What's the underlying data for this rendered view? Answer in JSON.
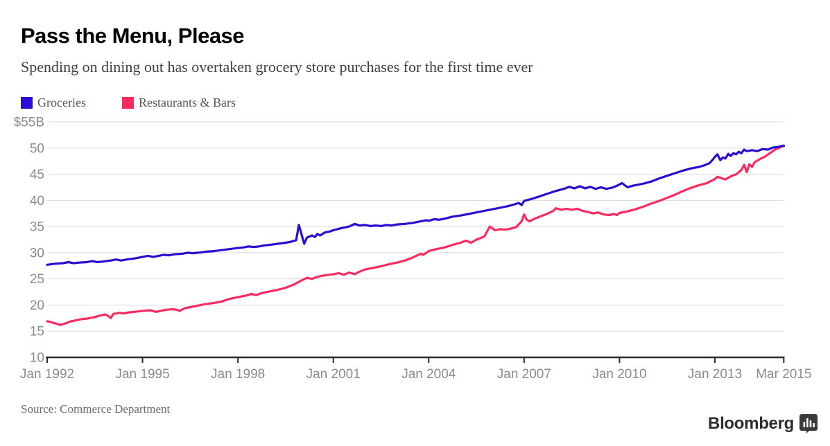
{
  "header": {
    "title": "Pass the Menu, Please",
    "subtitle": "Spending on dining out has overtaken grocery store purchases for the first time ever"
  },
  "legend": {
    "items": [
      {
        "label": "Groceries",
        "color": "#2c0bd2"
      },
      {
        "label": "Restaurants & Bars",
        "color": "#fb2b5f"
      }
    ]
  },
  "footer": {
    "source": "Source: Commerce Department",
    "brand": "Bloomberg",
    "brand_icon": "bloomberg-chart-badge-icon"
  },
  "chart_data": {
    "type": "line",
    "title": "Pass the Menu, Please",
    "subtitle": "Spending on dining out has overtaken grocery store purchases for the first time ever",
    "unit": "billions of US dollars, monthly",
    "grid": "horizontal",
    "legend_position": "top-left",
    "x_axis": {
      "min": 1992.0,
      "max": 2015.4,
      "ticks": [
        {
          "label": "Jan 1992",
          "x": 1992.0
        },
        {
          "label": "Jan 1995",
          "x": 1995.0
        },
        {
          "label": "Jan 1998",
          "x": 1998.0
        },
        {
          "label": "Jan 2001",
          "x": 2001.0
        },
        {
          "label": "Jan 2004",
          "x": 2004.0
        },
        {
          "label": "Jan 2007",
          "x": 2007.0
        },
        {
          "label": "Jan 2010",
          "x": 2010.0
        },
        {
          "label": "Jan 2013",
          "x": 2013.0
        },
        {
          "label": "Mar 2015",
          "x": 2015.167
        }
      ]
    },
    "y_axis": {
      "min": 10,
      "max": 55,
      "step": 5,
      "ticks": [
        {
          "label": "$55B",
          "value": 55
        },
        {
          "label": "50",
          "value": 50
        },
        {
          "label": "45",
          "value": 45
        },
        {
          "label": "40",
          "value": 40
        },
        {
          "label": "35",
          "value": 35
        },
        {
          "label": "30",
          "value": 30
        },
        {
          "label": "25",
          "value": 25
        },
        {
          "label": "20",
          "value": 20
        },
        {
          "label": "15",
          "value": 15
        },
        {
          "label": "10",
          "value": 10
        }
      ]
    },
    "series": [
      {
        "name": "Groceries",
        "color": "#2c0bd2",
        "points": [
          [
            1992.0,
            27.7
          ],
          [
            1992.25,
            27.9
          ],
          [
            1992.5,
            28.0
          ],
          [
            1992.67,
            28.2
          ],
          [
            1992.83,
            28.0
          ],
          [
            1993.0,
            28.1
          ],
          [
            1993.25,
            28.2
          ],
          [
            1993.42,
            28.4
          ],
          [
            1993.58,
            28.2
          ],
          [
            1993.75,
            28.3
          ],
          [
            1994.0,
            28.5
          ],
          [
            1994.17,
            28.7
          ],
          [
            1994.33,
            28.5
          ],
          [
            1994.5,
            28.7
          ],
          [
            1994.75,
            28.9
          ],
          [
            1994.92,
            29.1
          ],
          [
            1995.0,
            29.2
          ],
          [
            1995.17,
            29.4
          ],
          [
            1995.33,
            29.2
          ],
          [
            1995.5,
            29.4
          ],
          [
            1995.67,
            29.6
          ],
          [
            1995.83,
            29.5
          ],
          [
            1996.0,
            29.7
          ],
          [
            1996.25,
            29.8
          ],
          [
            1996.42,
            30.0
          ],
          [
            1996.58,
            29.9
          ],
          [
            1996.75,
            30.0
          ],
          [
            1997.0,
            30.2
          ],
          [
            1997.25,
            30.3
          ],
          [
            1997.5,
            30.5
          ],
          [
            1997.75,
            30.7
          ],
          [
            1998.0,
            30.9
          ],
          [
            1998.17,
            31.0
          ],
          [
            1998.33,
            31.2
          ],
          [
            1998.5,
            31.1
          ],
          [
            1998.67,
            31.2
          ],
          [
            1998.83,
            31.4
          ],
          [
            1999.0,
            31.5
          ],
          [
            1999.25,
            31.7
          ],
          [
            1999.5,
            31.9
          ],
          [
            1999.67,
            32.1
          ],
          [
            1999.83,
            32.4
          ],
          [
            1999.917,
            35.3
          ],
          [
            2000.083,
            31.7
          ],
          [
            2000.17,
            32.9
          ],
          [
            2000.33,
            33.3
          ],
          [
            2000.42,
            33.0
          ],
          [
            2000.5,
            33.6
          ],
          [
            2000.58,
            33.3
          ],
          [
            2000.75,
            33.9
          ],
          [
            2000.92,
            34.1
          ],
          [
            2001.0,
            34.3
          ],
          [
            2001.25,
            34.7
          ],
          [
            2001.5,
            35.0
          ],
          [
            2001.67,
            35.5
          ],
          [
            2001.83,
            35.2
          ],
          [
            2002.0,
            35.3
          ],
          [
            2002.17,
            35.1
          ],
          [
            2002.33,
            35.2
          ],
          [
            2002.5,
            35.1
          ],
          [
            2002.67,
            35.3
          ],
          [
            2002.83,
            35.2
          ],
          [
            2003.0,
            35.4
          ],
          [
            2003.25,
            35.5
          ],
          [
            2003.5,
            35.7
          ],
          [
            2003.75,
            36.0
          ],
          [
            2003.92,
            36.2
          ],
          [
            2004.0,
            36.1
          ],
          [
            2004.17,
            36.4
          ],
          [
            2004.33,
            36.3
          ],
          [
            2004.5,
            36.5
          ],
          [
            2004.75,
            36.9
          ],
          [
            2005.0,
            37.1
          ],
          [
            2005.25,
            37.4
          ],
          [
            2005.5,
            37.7
          ],
          [
            2005.75,
            38.0
          ],
          [
            2006.0,
            38.3
          ],
          [
            2006.25,
            38.6
          ],
          [
            2006.5,
            38.9
          ],
          [
            2006.67,
            39.2
          ],
          [
            2006.83,
            39.5
          ],
          [
            2006.92,
            39.1
          ],
          [
            2007.0,
            39.9
          ],
          [
            2007.25,
            40.3
          ],
          [
            2007.5,
            40.8
          ],
          [
            2007.75,
            41.3
          ],
          [
            2008.0,
            41.8
          ],
          [
            2008.25,
            42.2
          ],
          [
            2008.42,
            42.6
          ],
          [
            2008.58,
            42.3
          ],
          [
            2008.75,
            42.7
          ],
          [
            2008.92,
            42.3
          ],
          [
            2009.08,
            42.6
          ],
          [
            2009.25,
            42.2
          ],
          [
            2009.42,
            42.5
          ],
          [
            2009.58,
            42.2
          ],
          [
            2009.75,
            42.4
          ],
          [
            2009.92,
            42.8
          ],
          [
            2010.08,
            43.3
          ],
          [
            2010.25,
            42.5
          ],
          [
            2010.42,
            42.8
          ],
          [
            2010.58,
            43.0
          ],
          [
            2010.75,
            43.2
          ],
          [
            2011.0,
            43.6
          ],
          [
            2011.25,
            44.2
          ],
          [
            2011.5,
            44.7
          ],
          [
            2011.75,
            45.2
          ],
          [
            2012.0,
            45.7
          ],
          [
            2012.25,
            46.1
          ],
          [
            2012.5,
            46.4
          ],
          [
            2012.67,
            46.7
          ],
          [
            2012.83,
            47.1
          ],
          [
            2012.92,
            47.7
          ],
          [
            2013.0,
            48.3
          ],
          [
            2013.08,
            48.8
          ],
          [
            2013.17,
            47.7
          ],
          [
            2013.25,
            48.2
          ],
          [
            2013.33,
            48.0
          ],
          [
            2013.42,
            48.9
          ],
          [
            2013.5,
            48.5
          ],
          [
            2013.58,
            49.0
          ],
          [
            2013.67,
            48.8
          ],
          [
            2013.75,
            49.3
          ],
          [
            2013.83,
            49.0
          ],
          [
            2013.92,
            49.7
          ],
          [
            2014.0,
            49.4
          ],
          [
            2014.17,
            49.6
          ],
          [
            2014.33,
            49.4
          ],
          [
            2014.5,
            49.8
          ],
          [
            2014.67,
            49.7
          ],
          [
            2014.83,
            50.1
          ],
          [
            2015.0,
            50.2
          ],
          [
            2015.083,
            50.4
          ],
          [
            2015.167,
            50.4
          ]
        ]
      },
      {
        "name": "Restaurants & Bars",
        "color": "#fb2b5f",
        "points": [
          [
            1992.0,
            16.9
          ],
          [
            1992.083,
            16.8
          ],
          [
            1992.25,
            16.5
          ],
          [
            1992.42,
            16.2
          ],
          [
            1992.58,
            16.5
          ],
          [
            1992.75,
            16.9
          ],
          [
            1992.92,
            17.1
          ],
          [
            1993.08,
            17.3
          ],
          [
            1993.25,
            17.4
          ],
          [
            1993.5,
            17.7
          ],
          [
            1993.67,
            18.0
          ],
          [
            1993.83,
            18.2
          ],
          [
            1993.92,
            17.9
          ],
          [
            1994.0,
            17.5
          ],
          [
            1994.083,
            18.3
          ],
          [
            1994.25,
            18.5
          ],
          [
            1994.42,
            18.4
          ],
          [
            1994.58,
            18.6
          ],
          [
            1994.75,
            18.7
          ],
          [
            1995.0,
            18.9
          ],
          [
            1995.25,
            19.0
          ],
          [
            1995.42,
            18.7
          ],
          [
            1995.58,
            18.9
          ],
          [
            1995.75,
            19.1
          ],
          [
            1996.0,
            19.2
          ],
          [
            1996.17,
            18.9
          ],
          [
            1996.33,
            19.4
          ],
          [
            1996.5,
            19.6
          ],
          [
            1996.75,
            19.9
          ],
          [
            1997.0,
            20.2
          ],
          [
            1997.25,
            20.4
          ],
          [
            1997.5,
            20.7
          ],
          [
            1997.75,
            21.2
          ],
          [
            1998.0,
            21.5
          ],
          [
            1998.25,
            21.8
          ],
          [
            1998.42,
            22.1
          ],
          [
            1998.58,
            21.9
          ],
          [
            1998.75,
            22.3
          ],
          [
            1999.0,
            22.6
          ],
          [
            1999.25,
            22.9
          ],
          [
            1999.5,
            23.3
          ],
          [
            1999.75,
            23.9
          ],
          [
            2000.0,
            24.7
          ],
          [
            2000.17,
            25.2
          ],
          [
            2000.33,
            25.0
          ],
          [
            2000.5,
            25.4
          ],
          [
            2000.75,
            25.7
          ],
          [
            2001.0,
            25.9
          ],
          [
            2001.17,
            26.1
          ],
          [
            2001.33,
            25.8
          ],
          [
            2001.5,
            26.2
          ],
          [
            2001.67,
            25.9
          ],
          [
            2001.83,
            26.4
          ],
          [
            2002.0,
            26.8
          ],
          [
            2002.25,
            27.1
          ],
          [
            2002.5,
            27.4
          ],
          [
            2002.75,
            27.8
          ],
          [
            2003.0,
            28.1
          ],
          [
            2003.25,
            28.5
          ],
          [
            2003.5,
            29.1
          ],
          [
            2003.75,
            29.8
          ],
          [
            2003.83,
            29.6
          ],
          [
            2004.0,
            30.3
          ],
          [
            2004.25,
            30.7
          ],
          [
            2004.5,
            31.0
          ],
          [
            2004.75,
            31.5
          ],
          [
            2005.0,
            31.9
          ],
          [
            2005.17,
            32.3
          ],
          [
            2005.33,
            31.9
          ],
          [
            2005.5,
            32.5
          ],
          [
            2005.75,
            33.1
          ],
          [
            2005.92,
            35.0
          ],
          [
            2006.083,
            34.3
          ],
          [
            2006.25,
            34.5
          ],
          [
            2006.42,
            34.4
          ],
          [
            2006.58,
            34.6
          ],
          [
            2006.75,
            34.9
          ],
          [
            2006.92,
            36.0
          ],
          [
            2007.0,
            37.3
          ],
          [
            2007.083,
            36.3
          ],
          [
            2007.17,
            36.0
          ],
          [
            2007.33,
            36.5
          ],
          [
            2007.5,
            36.9
          ],
          [
            2007.75,
            37.5
          ],
          [
            2007.92,
            38.0
          ],
          [
            2008.0,
            38.5
          ],
          [
            2008.17,
            38.2
          ],
          [
            2008.33,
            38.4
          ],
          [
            2008.5,
            38.2
          ],
          [
            2008.67,
            38.4
          ],
          [
            2008.83,
            38.0
          ],
          [
            2009.0,
            37.8
          ],
          [
            2009.17,
            37.5
          ],
          [
            2009.33,
            37.7
          ],
          [
            2009.5,
            37.3
          ],
          [
            2009.67,
            37.2
          ],
          [
            2009.83,
            37.4
          ],
          [
            2009.92,
            37.2
          ],
          [
            2010.0,
            37.6
          ],
          [
            2010.25,
            37.9
          ],
          [
            2010.5,
            38.3
          ],
          [
            2010.75,
            38.8
          ],
          [
            2011.0,
            39.4
          ],
          [
            2011.25,
            39.9
          ],
          [
            2011.5,
            40.5
          ],
          [
            2011.75,
            41.1
          ],
          [
            2012.0,
            41.8
          ],
          [
            2012.25,
            42.4
          ],
          [
            2012.5,
            42.9
          ],
          [
            2012.75,
            43.3
          ],
          [
            2013.0,
            44.1
          ],
          [
            2013.08,
            44.5
          ],
          [
            2013.17,
            44.3
          ],
          [
            2013.33,
            44.0
          ],
          [
            2013.5,
            44.6
          ],
          [
            2013.67,
            45.0
          ],
          [
            2013.83,
            45.8
          ],
          [
            2013.92,
            46.8
          ],
          [
            2014.0,
            45.4
          ],
          [
            2014.083,
            46.9
          ],
          [
            2014.17,
            46.4
          ],
          [
            2014.25,
            47.3
          ],
          [
            2014.42,
            47.9
          ],
          [
            2014.58,
            48.4
          ],
          [
            2014.75,
            49.1
          ],
          [
            2014.92,
            49.8
          ],
          [
            2015.0,
            50.0
          ],
          [
            2015.083,
            50.2
          ],
          [
            2015.167,
            50.5
          ]
        ]
      }
    ]
  },
  "style": {
    "gridline_color": "#d9d9d9",
    "axis_color": "#2a2a2a",
    "tick_label_color": "#8b8b8b",
    "line_width": 3.2
  }
}
